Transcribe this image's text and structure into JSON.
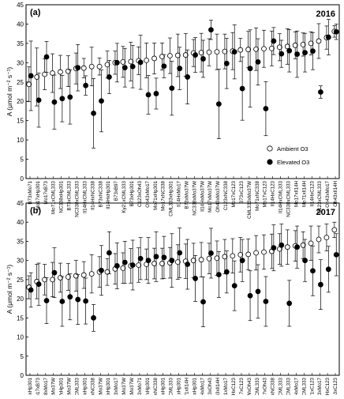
{
  "chart_data": [
    {
      "type": "scatter",
      "panel_label": "(a)",
      "year": "2016",
      "ylabel": "A (μmol m⁻² s⁻¹)",
      "ylim": [
        0,
        45
      ],
      "yticks": [
        0,
        5,
        10,
        15,
        20,
        25,
        30,
        35,
        40,
        45
      ],
      "legend": {
        "position": "lower-right",
        "entries": [
          "Ambient O3",
          "Elevated O3"
        ]
      },
      "categories": [
        "B73xMo71",
        "Mo17xHp301",
        "Mo17xB73",
        "Mo71xCML333",
        "NC338xHp301",
        "B73xCML333",
        "NC338xCML333",
        "Il14HxCML333",
        "Il14HxNC338",
        "B73xNC338",
        "Il14HxHp301",
        "B73xB97",
        "Ky21xCML333",
        "B73xHp301",
        "C123xOh43",
        "Oh43xMo17",
        "Mo71xHp301",
        "Mo17xNC338",
        "CML333xHp301",
        "Il14HxMo17",
        "B73xMo37W",
        "NC338xMo37W",
        "Il14HxMo37W",
        "Mo17xMo37W",
        "Oh43xMo37W",
        "C123xNC338",
        "Mo17xC123",
        "B73xC123",
        "CML333xMo37W",
        "Mo71xNC338",
        "Mo17xC123",
        "Il14HxC123",
        "Il14HxCML333",
        "NC338xCML333",
        "Mo17xIl14H",
        "Mo71xIl14H",
        "Il14HxC123",
        "C123xCML333",
        "Oh43xMo17",
        "Oh43xIl14H"
      ],
      "series": [
        {
          "name": "Ambient O3",
          "marker": "open-circle",
          "values": [
            24.4,
            26.3,
            27.0,
            27.3,
            27.6,
            27.8,
            28.5,
            28.6,
            29.0,
            29.0,
            29.5,
            30.0,
            30.2,
            30.3,
            30.5,
            30.6,
            31.1,
            31.6,
            31.8,
            31.9,
            32.0,
            32.5,
            32.6,
            32.7,
            32.8,
            32.9,
            33.0,
            33.3,
            33.4,
            33.5,
            33.6,
            33.7,
            34.0,
            34.2,
            34.5,
            34.7,
            35.0,
            35.6,
            36.5,
            38.1
          ],
          "errors": [
            4.5,
            7.5,
            4.0,
            5.0,
            4.3,
            4.0,
            4.0,
            2.5,
            5.0,
            2.2,
            3.5,
            3.0,
            4.0,
            5.0,
            3.6,
            4.5,
            4.0,
            3.5,
            4.6,
            5.5,
            5.5,
            3.5,
            5.0,
            3.5,
            4.6,
            4.5,
            4.8,
            3.0,
            4.7,
            5.5,
            4.8,
            4.5,
            3.5,
            4.6,
            3.5,
            3.0,
            3.0,
            4.5,
            3.0,
            1.5
          ]
        },
        {
          "name": "Elevated O3",
          "marker": "filled-circle",
          "values": [
            26.6,
            20.3,
            31.5,
            19.8,
            20.7,
            21.1,
            28.7,
            24.1,
            16.9,
            20.1,
            26.3,
            30.0,
            28.7,
            29.0,
            30.1,
            21.7,
            22.0,
            29.1,
            23.4,
            28.5,
            26.3,
            32.0,
            31.0,
            38.5,
            19.3,
            29.8,
            32.8,
            23.3,
            28.5,
            30.2,
            18.1,
            35.6,
            32.3,
            33.1,
            32.2,
            32.6,
            33.0,
            22.4,
            36.6,
            38.0
          ],
          "errors": [
            9.0,
            7.0,
            4.0,
            7.0,
            6.0,
            7.0,
            6.0,
            2.5,
            9.0,
            8.0,
            4.3,
            5.0,
            5.0,
            5.5,
            7.0,
            5.0,
            4.0,
            3.0,
            7.0,
            5.5,
            7.0,
            4.5,
            4.8,
            2.5,
            9.0,
            6.5,
            7.0,
            8.2,
            10.0,
            6.0,
            7.0,
            3.5,
            3.5,
            5.5,
            6.0,
            5.0,
            4.8,
            1.6,
            4.6,
            2.0
          ]
        }
      ]
    },
    {
      "type": "scatter",
      "panel_label": "(b)",
      "year": "2017",
      "ylabel": "A (μmol m⁻² s⁻¹)",
      "ylim": [
        0,
        45
      ],
      "yticks": [
        0,
        5,
        10,
        15,
        20,
        25,
        30,
        35,
        40,
        45
      ],
      "categories": [
        "B73xHp301",
        "Mo17xB73",
        "NC338xMo17",
        "Il14HxMo37W",
        "Mo37WxHp301",
        "NC338xMo37W",
        "B73xCML333",
        "NC338xHp301",
        "Mo71xNC338",
        "B73xMo37W",
        "Il14HxHp301",
        "B73xMo17",
        "Mo71xMo37W",
        "C123xMo37W",
        "C123xMo71",
        "Mo17xHp301",
        "B73xNC338",
        "C123xHp301",
        "Il14HxCML333",
        "Mo71xHp301",
        "Mo71xIl14H",
        "CML333xHp301",
        "Il14HxMo17",
        "B73xOh43",
        "Oh43xIl14H",
        "Mo71xMo17",
        "Il14HxC123",
        "Mo17xC123",
        "Mo37WxOh43",
        "Mo17xCML333",
        "Mo17xOh43",
        "Il14HxNC338",
        "Oh43xCML333",
        "C123xCML333",
        "Il14HxMo17",
        "NC338xCML333",
        "Mo71xC123",
        "Oh43xMo17",
        "Il14HxC123",
        "Oh43xC123"
      ],
      "series": [
        {
          "name": "Ambient O3",
          "marker": "open-circle",
          "values": [
            23.0,
            24.5,
            25.0,
            25.0,
            25.5,
            25.7,
            26.0,
            26.2,
            26.5,
            27.0,
            27.0,
            27.8,
            28.0,
            28.6,
            28.8,
            29.0,
            29.2,
            29.2,
            29.4,
            29.6,
            29.8,
            30.0,
            30.2,
            30.5,
            30.6,
            31.0,
            31.2,
            31.5,
            31.6,
            32.0,
            32.2,
            32.4,
            33.0,
            33.5,
            33.8,
            34.0,
            34.5,
            35.5,
            36.0,
            38.0
          ],
          "errors": [
            3.0,
            4.5,
            4.0,
            4.5,
            3.8,
            3.5,
            4.0,
            3.5,
            5.0,
            4.0,
            3.5,
            4.0,
            4.0,
            4.5,
            4.5,
            4.0,
            4.0,
            4.0,
            4.0,
            4.5,
            4.5,
            4.5,
            4.5,
            4.0,
            4.5,
            4.5,
            4.5,
            4.5,
            4.0,
            4.5,
            4.5,
            4.5,
            4.0,
            4.5,
            4.0,
            3.5,
            4.5,
            3.5,
            3.5,
            2.0
          ]
        },
        {
          "name": "Elevated O3",
          "marker": "filled-circle",
          "values": [
            22.3,
            23.8,
            19.5,
            26.8,
            19.3,
            20.5,
            19.8,
            19.4,
            15.0,
            27.4,
            32.0,
            28.6,
            29.5,
            28.8,
            30.5,
            30.0,
            31.0,
            30.8,
            30.0,
            32.0,
            29.0,
            25.3,
            19.2,
            31.9,
            26.3,
            27.0,
            23.4,
            30.0,
            20.8,
            21.9,
            19.3,
            33.3,
            34.0,
            18.8,
            33.5,
            30.0,
            27.3,
            23.7,
            27.7,
            31.5
          ],
          "errors": [
            4.5,
            5.5,
            6.0,
            6.5,
            6.5,
            6.0,
            6.5,
            6.0,
            3.5,
            6.5,
            5.5,
            6.0,
            5.5,
            6.5,
            5.5,
            6.0,
            6.5,
            5.5,
            7.0,
            6.5,
            6.5,
            6.0,
            6.5,
            6.5,
            6.0,
            5.5,
            6.5,
            5.5,
            6.5,
            7.0,
            6.5,
            6.0,
            5.5,
            6.0,
            5.5,
            5.5,
            6.5,
            6.5,
            6.0,
            5.5
          ]
        }
      ]
    }
  ]
}
